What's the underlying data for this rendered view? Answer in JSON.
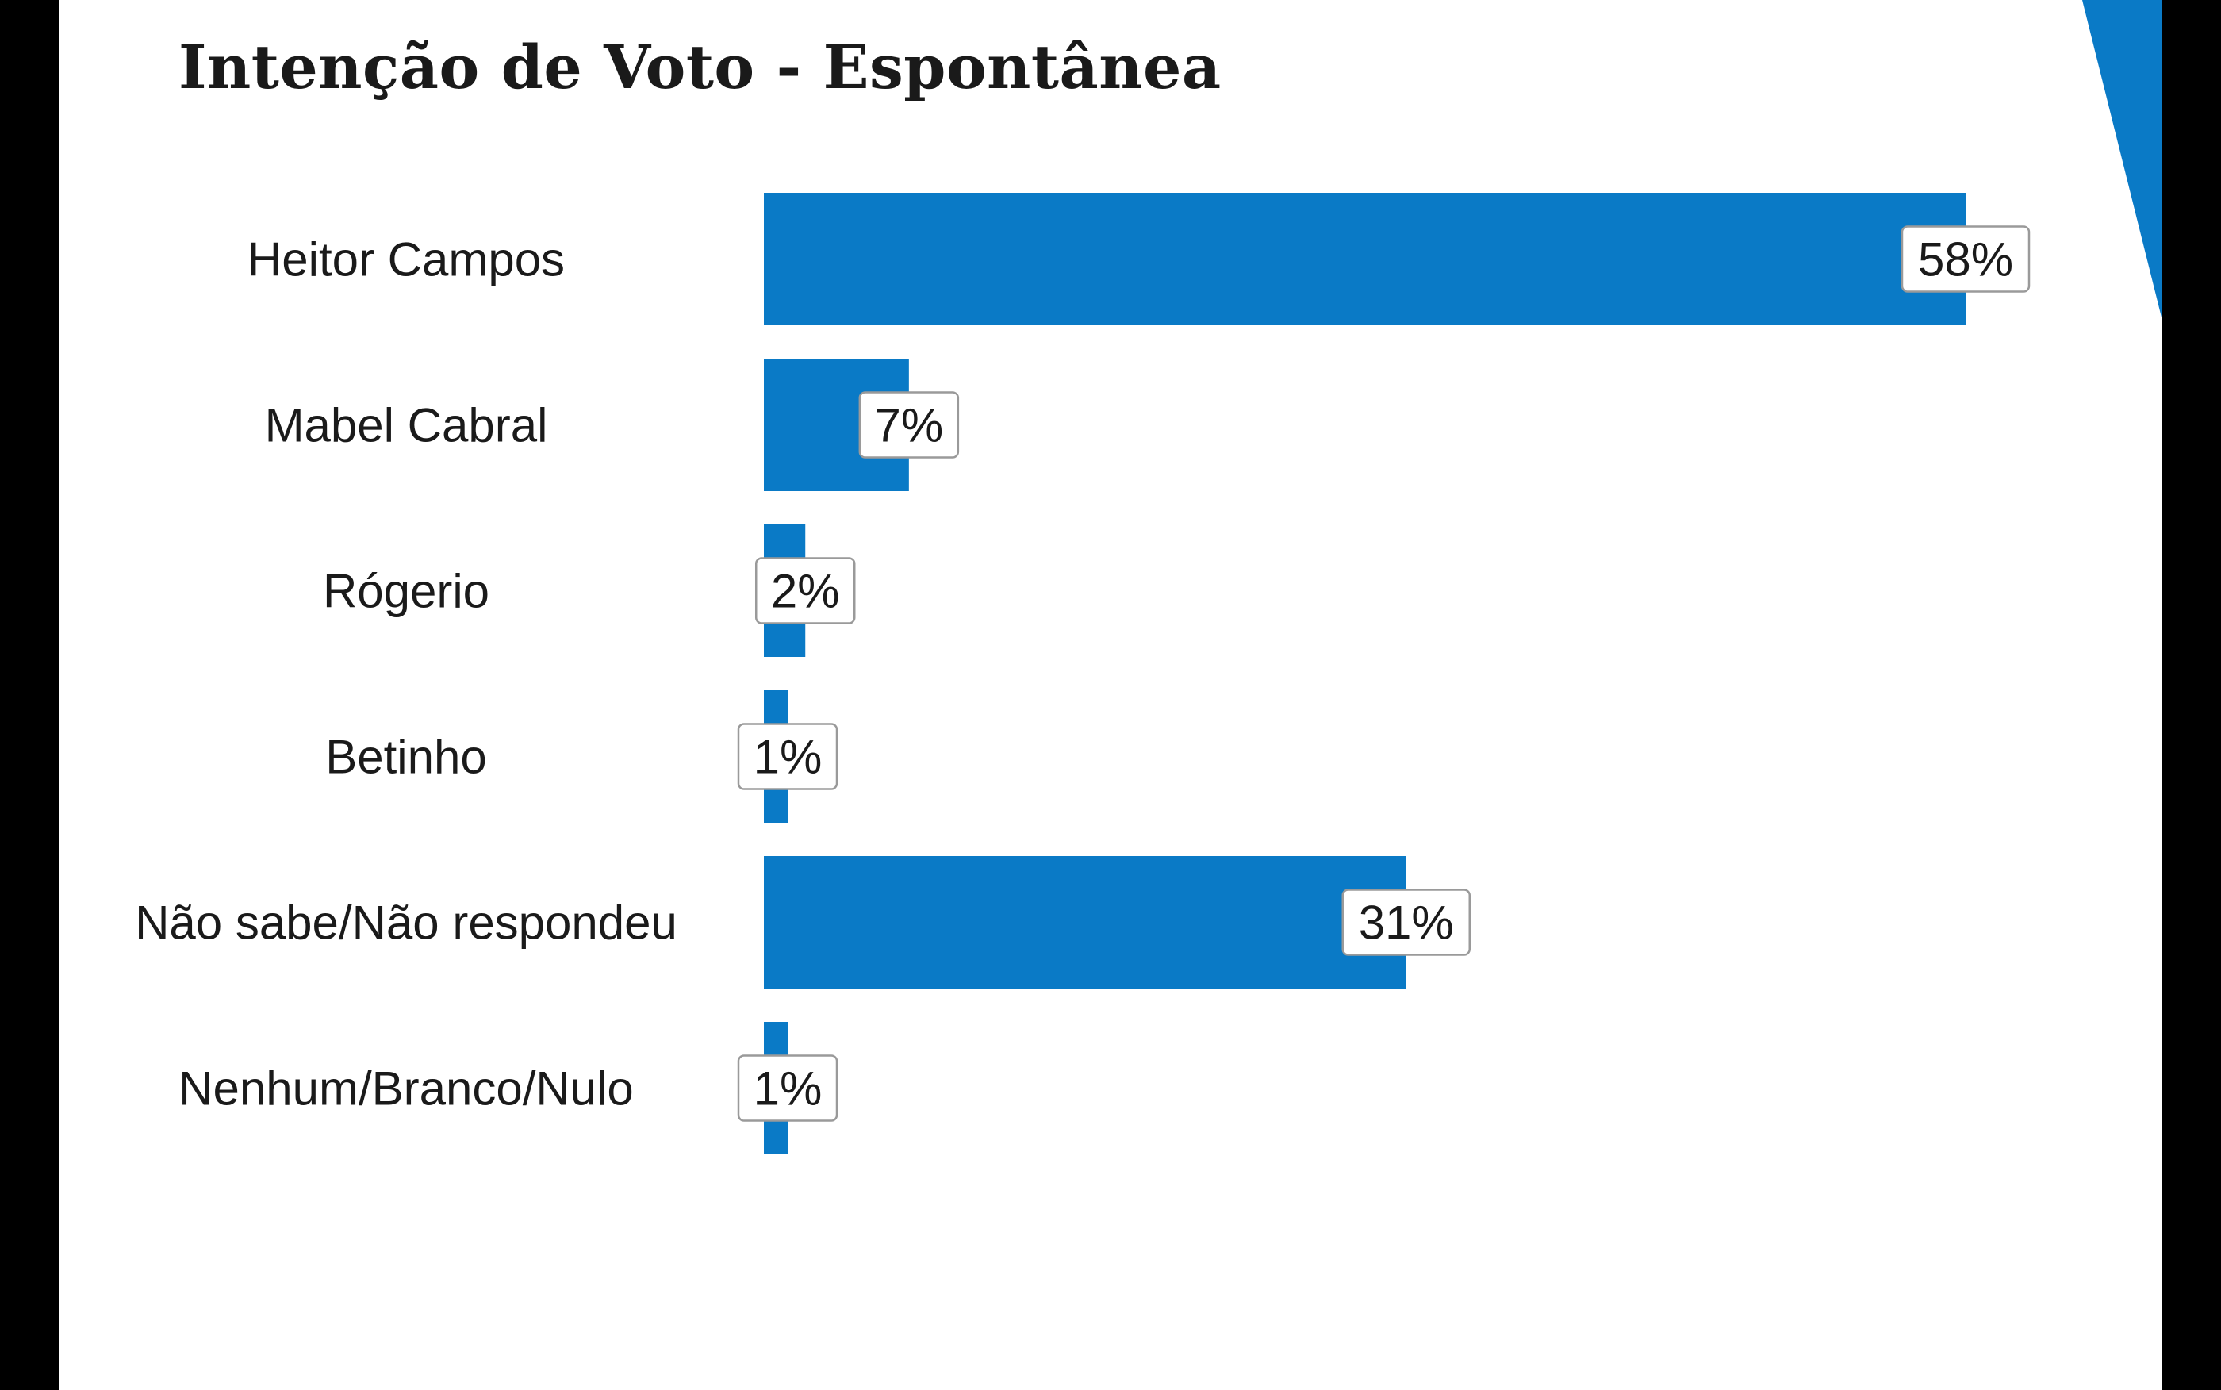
{
  "slide": {
    "title": "Intenção de Voto - Espontânea",
    "accent_color": "#0a7ac6",
    "background": "#ffffff",
    "frame_color": "#000000"
  },
  "chart_data": {
    "type": "bar",
    "orientation": "horizontal",
    "title": "Intenção de Voto - Espontânea",
    "categories": [
      "Heitor Campos",
      "Mabel Cabral",
      "Rógerio",
      "Betinho",
      "Não sabe/Não respondeu",
      "Nenhum/Branco/Nulo"
    ],
    "values": [
      58,
      7,
      2,
      1,
      31,
      1
    ],
    "value_labels": [
      "58%",
      "7%",
      "2%",
      "1%",
      "31%",
      "1%"
    ],
    "unit": "%",
    "xlim": [
      0,
      58
    ],
    "bar_color": "#0a7ac6",
    "grid": false,
    "legend": "none",
    "xlabel": "",
    "ylabel": ""
  }
}
